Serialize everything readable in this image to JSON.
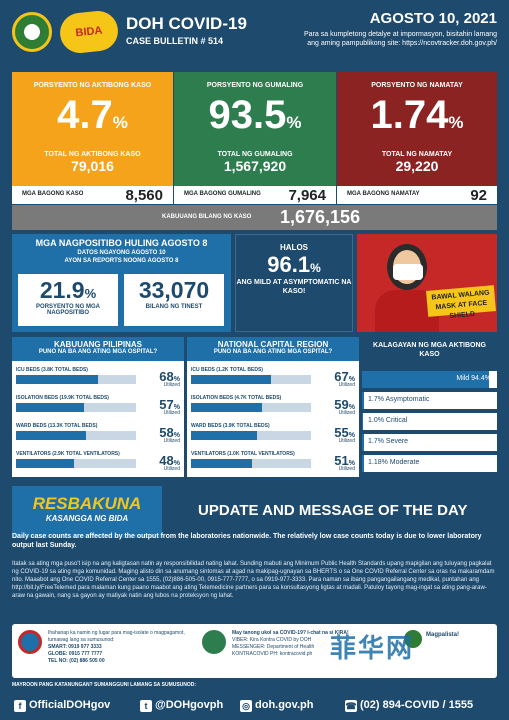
{
  "header": {
    "title": "DOH COVID-19",
    "bulletin": "CASE BULLETIN # 514",
    "date": "AGOSTO 10, 2021",
    "info": "Para sa kumpletong detalye at impormasyon, bisitahin lamang ang aming pampublikong site: https://ncovtracker.doh.gov.ph/"
  },
  "stats": {
    "active": {
      "label": "PORSYENTO NG AKTIBONG KASO",
      "percent": "4.7",
      "total_label": "TOTAL NG AKTIBONG KASO",
      "total": "79,016"
    },
    "recovered": {
      "label": "PORSYENTO NG GUMALING",
      "percent": "93.5",
      "total_label": "TOTAL NG GUMALING",
      "total": "1,567,920"
    },
    "deaths": {
      "label": "PORSYENTO NG NAMATAY",
      "percent": "1.74",
      "total_label": "TOTAL NG NAMATAY",
      "total": "29,220"
    },
    "pct_sign": "%"
  },
  "new": {
    "cases_label": "MGA BAGONG KASO",
    "cases": "8,560",
    "recovered_label": "MGA BAGONG GUMALING",
    "recovered": "7,964",
    "deaths_label": "MGA BAGONG NAMATAY",
    "deaths": "92",
    "total_label": "KABUUANG BILANG NG KASO",
    "total": "1,676,156"
  },
  "positivity": {
    "title": "MGA NAGPOSITIBO HULING AGOSTO 8",
    "sub1": "DATOS NGAYONG AGOSTO 10",
    "sub2": "AYON SA REPORTS NOONG AGOSTO 8",
    "rate": "21.9",
    "rate_label": "PORSYENTO NG MGA NAGPOSITIBO",
    "tested": "33,070",
    "tested_label": "BILANG NG TINEST"
  },
  "asymptomatic": {
    "line1": "HALOS",
    "value": "96.1",
    "line2": "ANG MILD AT ASYMPTOMATIC NA KASO!"
  },
  "mask": {
    "text": "BAWAL WALANG MASK AT FACE SHIELD"
  },
  "hospital_ph": {
    "title": "KABUUANG PILIPINAS",
    "subtitle": "PUNO NA BA ANG ATING MGA OSPITAL?",
    "rows": [
      {
        "label": "ICU BEDS (3.8K TOTAL BEDS)",
        "value": 68
      },
      {
        "label": "ISOLATION BEDS (19.9K TOTAL BEDS)",
        "value": 57
      },
      {
        "label": "WARD BEDS (13.3K TOTAL BEDS)",
        "value": 58
      },
      {
        "label": "VENTILATORS (2.9K TOTAL VENTILATORS)",
        "value": 48
      }
    ]
  },
  "hospital_ncr": {
    "title": "NATIONAL CAPITAL REGION",
    "subtitle": "PUNO NA BA ANG ATING MGA OSPITAL?",
    "rows": [
      {
        "label": "ICU BEDS (1.2K TOTAL BEDS)",
        "value": 67
      },
      {
        "label": "ISOLATION BEDS (4.7K TOTAL BEDS)",
        "value": 59
      },
      {
        "label": "WARD BEDS (3.9K TOTAL BEDS)",
        "value": 55
      },
      {
        "label": "VENTILATORS (1.0K TOTAL VENTILATORS)",
        "value": 51
      }
    ]
  },
  "utilized_label": "Utilized",
  "status": {
    "title": "KALAGAYAN NG MGA AKTIBONG KASO",
    "rows": [
      {
        "label": "Mild 94.4%",
        "value": 94.4
      },
      {
        "label": "1.7% Asymptomatic",
        "value": 1.7
      },
      {
        "label": "1.0% Critical",
        "value": 1.0
      },
      {
        "label": "1.7% Severe",
        "value": 1.7
      },
      {
        "label": "1.18% Moderate",
        "value": 1.18
      }
    ]
  },
  "update": {
    "resbakuna": "RESBAKUNA",
    "resbakuna_sub": "KASANGGA NG BIDA",
    "title": "UPDATE AND MESSAGE OF THE DAY",
    "bold": "Daily case counts are affected by the output from the laboratories nationwide. The relatively low case counts today is due to lower laboratory output last Sunday.",
    "text": "Itatak sa ating mga puso't isip na ang kaligtasan natin ay responsibilidad nating lahat. Sunding mabuti ang Minimum Public Health Standards upang mapigilan ang tuluyang pagkalat ng COVID-19 sa ating mga komunidad. Maging alisto din sa anumang sintomas at agad na makipag-ugnayan sa BHERTS o sa One COVID Referral Center sa oras na makaramdam nito. Maaabot ang One COVID Referral Center sa 1555, (02)886-505-00, 0915-777-7777, o sa 0919-977-3333. Para naman sa ibang pangangailangang medikal, puntahan ang http://bit.ly/FreeTelemed para malaman kung paano maabot ang ating Telemedicine partners para sa konsultasyong ligtas at madali. Patuloy tayong mag-ingat sa ating pang-araw-araw na gawain, nang sa gayon ay matiyak natin ang lubos na proteksyon ng lahat."
  },
  "contacts": {
    "c1_text": "Ihahanap ka namin ng lugar para mag-isolate o magpagamot, tumawag lang sa sumusunod:",
    "c1_smart": "SMART: 0919 977 3333",
    "c1_globe": "GLOBE: 0915 777 7777",
    "c1_tel": "TEL NO: (02) 886 505 00",
    "c2_text": "May tanong ukol sa COVID-19? I-chat na si KIRA!",
    "c2_viber": "VIBER: Kira Kontra COVID by DOH",
    "c2_messenger": "MESSENGER: Department of Health",
    "c2_kontra": "KONTRACOVID PH: kontracovid.ph",
    "c3_text": "Magpalista!"
  },
  "footer": {
    "question": "MAYROON PANG KATANUNGAN? SUMANGGUNI LAMANG SA SUMUSUNOD:",
    "facebook": "OfficialDOHgov",
    "twitter": "@DOHgovph",
    "web": "doh.gov.ph",
    "phone": "(02) 894-COVID / 1555"
  },
  "watermark": "菲华网"
}
